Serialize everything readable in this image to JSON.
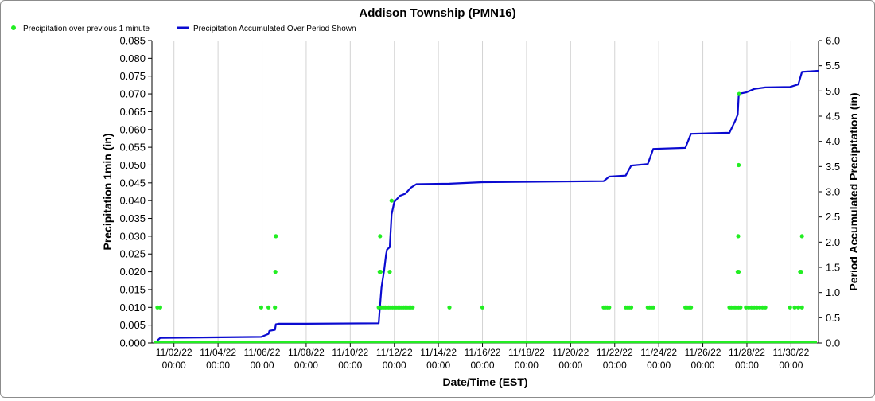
{
  "chart_data": {
    "type": "scatter+line",
    "title": "Addison Township (PMN16)",
    "xlabel": "Date/Time (EST)",
    "ylabel_left": "Precipitation 1min (in)",
    "ylabel_right": "Period Accumulated Precipitation (in)",
    "x_range": [
      "2022-11-01T00:00",
      "2022-12-01T06:00"
    ],
    "x_ticks": [
      {
        "date": "11/02/22",
        "time": "00:00"
      },
      {
        "date": "11/04/22",
        "time": "00:00"
      },
      {
        "date": "11/06/22",
        "time": "00:00"
      },
      {
        "date": "11/08/22",
        "time": "00:00"
      },
      {
        "date": "11/10/22",
        "time": "00:00"
      },
      {
        "date": "11/12/22",
        "time": "00:00"
      },
      {
        "date": "11/14/22",
        "time": "00:00"
      },
      {
        "date": "11/16/22",
        "time": "00:00"
      },
      {
        "date": "11/18/22",
        "time": "00:00"
      },
      {
        "date": "11/20/22",
        "time": "00:00"
      },
      {
        "date": "11/22/22",
        "time": "00:00"
      },
      {
        "date": "11/24/22",
        "time": "00:00"
      },
      {
        "date": "11/26/22",
        "time": "00:00"
      },
      {
        "date": "11/28/22",
        "time": "00:00"
      },
      {
        "date": "11/30/22",
        "time": "00:00"
      }
    ],
    "y_left": {
      "range": [
        0,
        0.085
      ],
      "ticks": [
        "0.000",
        "0.005",
        "0.010",
        "0.015",
        "0.020",
        "0.025",
        "0.030",
        "0.035",
        "0.040",
        "0.045",
        "0.050",
        "0.055",
        "0.060",
        "0.065",
        "0.070",
        "0.075",
        "0.080",
        "0.085"
      ]
    },
    "y_right": {
      "range": [
        0,
        6.0
      ],
      "ticks": [
        "0.0",
        "0.5",
        "1.0",
        "1.5",
        "2.0",
        "2.5",
        "3.0",
        "3.5",
        "4.0",
        "4.5",
        "5.0",
        "5.5",
        "6.0"
      ]
    },
    "grid": {
      "vertical": true,
      "horizontal": false
    },
    "legend": {
      "placement": "top-left"
    },
    "series": [
      {
        "name": "Precipitation over previous 1 minute",
        "style": "points",
        "color": "#22ee22",
        "axis": "left",
        "points": [
          [
            "2022-11-01T06:00",
            0.01
          ],
          [
            "2022-11-01T09:00",
            0.01
          ],
          [
            "2022-11-05T23:00",
            0.01
          ],
          [
            "2022-11-06T07:00",
            0.01
          ],
          [
            "2022-11-06T14:00",
            0.01
          ],
          [
            "2022-11-06T14:30",
            0.02
          ],
          [
            "2022-11-06T15:00",
            0.03
          ],
          [
            "2022-11-11T07:00",
            0.01
          ],
          [
            "2022-11-11T08:00",
            0.02
          ],
          [
            "2022-11-11T08:30",
            0.03
          ],
          [
            "2022-11-11T09:00",
            0.02
          ],
          [
            "2022-11-11T10:00",
            0.01
          ],
          [
            "2022-11-11T12:00",
            0.01
          ],
          [
            "2022-11-11T14:00",
            0.01
          ],
          [
            "2022-11-11T16:00",
            0.01
          ],
          [
            "2022-11-11T18:00",
            0.01
          ],
          [
            "2022-11-11T20:00",
            0.01
          ],
          [
            "2022-11-11T22:00",
            0.01
          ],
          [
            "2022-11-12T00:00",
            0.01
          ],
          [
            "2022-11-11T19:00",
            0.02
          ],
          [
            "2022-11-11T21:00",
            0.04
          ],
          [
            "2022-11-12T02:00",
            0.01
          ],
          [
            "2022-11-12T04:00",
            0.01
          ],
          [
            "2022-11-12T06:00",
            0.01
          ],
          [
            "2022-11-12T08:00",
            0.01
          ],
          [
            "2022-11-12T10:00",
            0.01
          ],
          [
            "2022-11-12T12:00",
            0.01
          ],
          [
            "2022-11-12T14:00",
            0.01
          ],
          [
            "2022-11-12T16:00",
            0.01
          ],
          [
            "2022-11-12T18:00",
            0.01
          ],
          [
            "2022-11-12T20:00",
            0.01
          ],
          [
            "2022-11-14T12:00",
            0.01
          ],
          [
            "2022-11-16T00:00",
            0.01
          ],
          [
            "2022-11-21T12:00",
            0.01
          ],
          [
            "2022-11-21T14:00",
            0.01
          ],
          [
            "2022-11-21T16:00",
            0.01
          ],
          [
            "2022-11-21T18:00",
            0.01
          ],
          [
            "2022-11-22T12:00",
            0.01
          ],
          [
            "2022-11-22T14:00",
            0.01
          ],
          [
            "2022-11-22T16:00",
            0.01
          ],
          [
            "2022-11-22T18:00",
            0.01
          ],
          [
            "2022-11-23T12:00",
            0.01
          ],
          [
            "2022-11-23T14:00",
            0.01
          ],
          [
            "2022-11-23T16:00",
            0.01
          ],
          [
            "2022-11-23T18:00",
            0.01
          ],
          [
            "2022-11-25T05:00",
            0.01
          ],
          [
            "2022-11-25T07:00",
            0.01
          ],
          [
            "2022-11-25T09:00",
            0.01
          ],
          [
            "2022-11-25T11:00",
            0.01
          ],
          [
            "2022-11-27T05:00",
            0.01
          ],
          [
            "2022-11-27T07:00",
            0.01
          ],
          [
            "2022-11-27T09:00",
            0.01
          ],
          [
            "2022-11-27T11:00",
            0.01
          ],
          [
            "2022-11-27T13:00",
            0.01
          ],
          [
            "2022-11-27T15:00",
            0.01
          ],
          [
            "2022-11-27T17:00",
            0.01
          ],
          [
            "2022-11-27T14:00",
            0.02
          ],
          [
            "2022-11-27T15:00",
            0.02
          ],
          [
            "2022-11-27T14:30",
            0.03
          ],
          [
            "2022-11-27T15:00",
            0.05
          ],
          [
            "2022-11-27T15:30",
            0.07
          ],
          [
            "2022-11-27T23:00",
            0.01
          ],
          [
            "2022-11-28T02:00",
            0.01
          ],
          [
            "2022-11-28T05:00",
            0.01
          ],
          [
            "2022-11-28T08:00",
            0.01
          ],
          [
            "2022-11-28T11:00",
            0.01
          ],
          [
            "2022-11-28T14:00",
            0.01
          ],
          [
            "2022-11-28T17:00",
            0.01
          ],
          [
            "2022-11-28T20:00",
            0.01
          ],
          [
            "2022-11-29T23:00",
            0.01
          ],
          [
            "2022-11-30T04:00",
            0.01
          ],
          [
            "2022-11-30T08:00",
            0.01
          ],
          [
            "2022-11-30T12:00",
            0.01
          ],
          [
            "2022-11-30T10:00",
            0.02
          ],
          [
            "2022-11-30T11:00",
            0.02
          ],
          [
            "2022-11-30T12:00",
            0.03
          ]
        ]
      },
      {
        "name": "Precipitation Accumulated Over Period Shown",
        "style": "line",
        "color": "#0a0ad0",
        "axis": "right",
        "points": [
          [
            "2022-11-01T06:00",
            0.05
          ],
          [
            "2022-11-01T09:00",
            0.1
          ],
          [
            "2022-11-05T23:00",
            0.12
          ],
          [
            "2022-11-06T07:00",
            0.18
          ],
          [
            "2022-11-06T08:00",
            0.24
          ],
          [
            "2022-11-06T14:00",
            0.26
          ],
          [
            "2022-11-06T15:00",
            0.37
          ],
          [
            "2022-11-06T18:00",
            0.38
          ],
          [
            "2022-11-08T00:00",
            0.38
          ],
          [
            "2022-11-11T07:00",
            0.39
          ],
          [
            "2022-11-11T08:00",
            0.65
          ],
          [
            "2022-11-11T10:00",
            1.1
          ],
          [
            "2022-11-11T13:00",
            1.45
          ],
          [
            "2022-11-11T15:00",
            1.75
          ],
          [
            "2022-11-11T16:00",
            1.85
          ],
          [
            "2022-11-11T19:00",
            1.9
          ],
          [
            "2022-11-11T21:00",
            2.55
          ],
          [
            "2022-11-12T00:00",
            2.8
          ],
          [
            "2022-11-12T06:00",
            2.92
          ],
          [
            "2022-11-12T12:00",
            2.96
          ],
          [
            "2022-11-12T18:00",
            3.08
          ],
          [
            "2022-11-13T00:00",
            3.15
          ],
          [
            "2022-11-14T12:00",
            3.16
          ],
          [
            "2022-11-16T00:00",
            3.19
          ],
          [
            "2022-11-21T12:00",
            3.21
          ],
          [
            "2022-11-21T18:00",
            3.3
          ],
          [
            "2022-11-22T12:00",
            3.32
          ],
          [
            "2022-11-22T18:00",
            3.52
          ],
          [
            "2022-11-23T12:00",
            3.55
          ],
          [
            "2022-11-23T18:00",
            3.85
          ],
          [
            "2022-11-25T05:00",
            3.87
          ],
          [
            "2022-11-25T11:00",
            4.15
          ],
          [
            "2022-11-27T05:00",
            4.17
          ],
          [
            "2022-11-27T11:00",
            4.4
          ],
          [
            "2022-11-27T14:00",
            4.53
          ],
          [
            "2022-11-27T15:00",
            4.9
          ],
          [
            "2022-11-27T17:00",
            4.95
          ],
          [
            "2022-11-27T23:00",
            4.97
          ],
          [
            "2022-11-28T08:00",
            5.04
          ],
          [
            "2022-11-28T20:00",
            5.07
          ],
          [
            "2022-11-29T23:00",
            5.08
          ],
          [
            "2022-11-30T08:00",
            5.13
          ],
          [
            "2022-11-30T12:00",
            5.38
          ],
          [
            "2022-12-01T06:00",
            5.4
          ]
        ]
      }
    ]
  }
}
